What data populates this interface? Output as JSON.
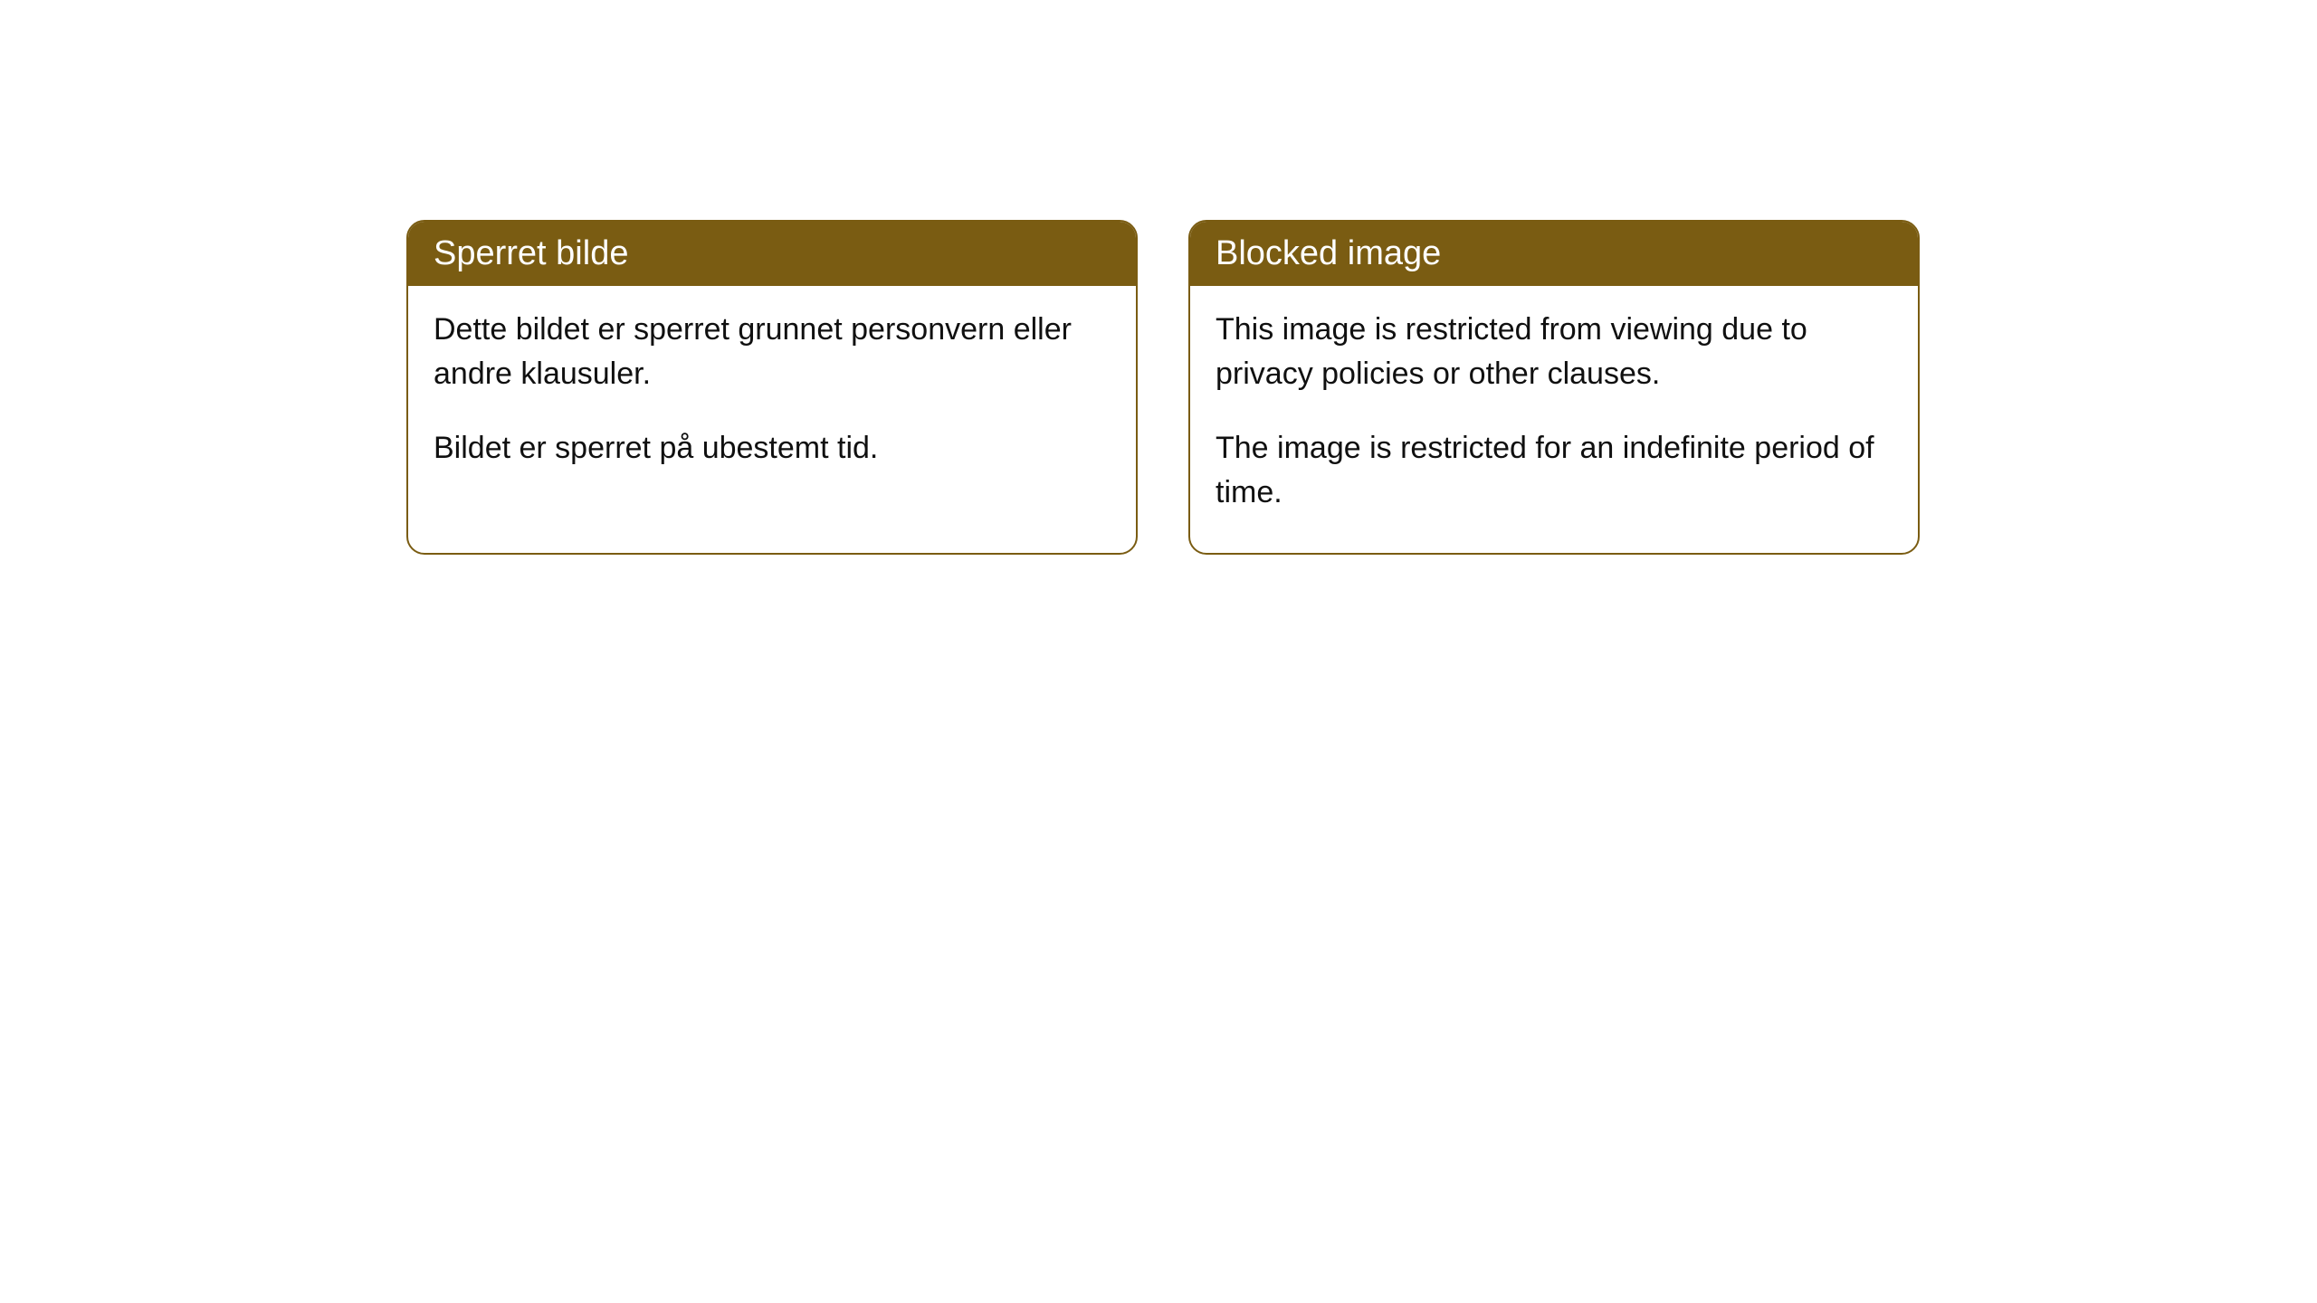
{
  "cards": [
    {
      "title": "Sperret bilde",
      "paragraph1": "Dette bildet er sperret grunnet personvern eller andre klausuler.",
      "paragraph2": "Bildet er sperret på ubestemt tid."
    },
    {
      "title": "Blocked image",
      "paragraph1": "This image is restricted from viewing due to privacy policies or other clauses.",
      "paragraph2": "The image is restricted for an indefinite period of time."
    }
  ],
  "style": {
    "header_bg": "#7a5c12",
    "header_color": "#ffffff",
    "border_color": "#7a5c12",
    "body_color": "#101010",
    "background_color": "#ffffff",
    "border_radius": 20,
    "title_fontsize": 38,
    "body_fontsize": 34
  }
}
